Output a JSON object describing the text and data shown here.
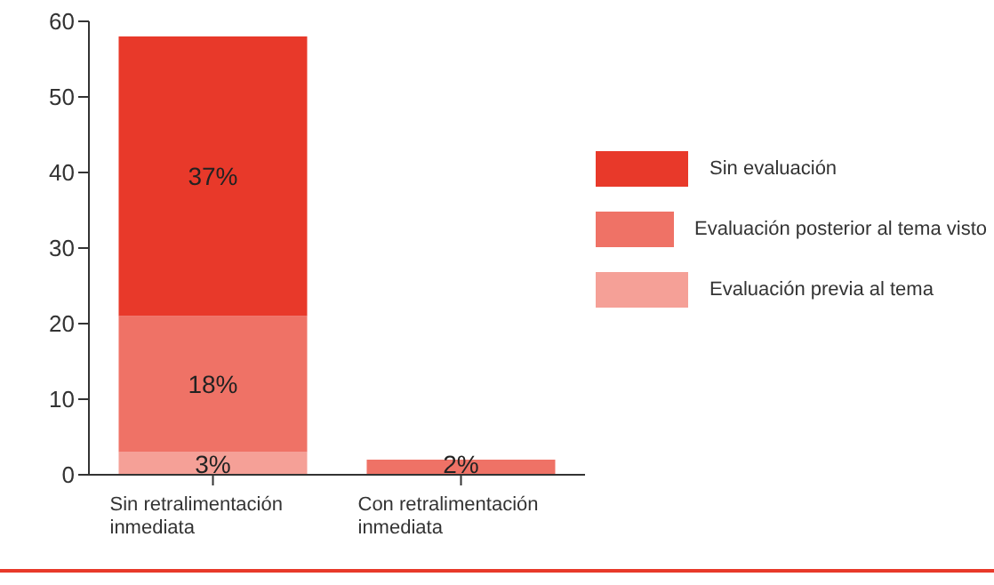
{
  "chart_data": {
    "type": "bar",
    "stacked": true,
    "categories": [
      "Sin retralimentación inmediata",
      "Con retralimentación inmediata"
    ],
    "series": [
      {
        "name": "Evaluación previa al tema",
        "color": "#f5a097",
        "values": [
          3,
          null
        ],
        "value_labels": [
          "3%",
          null
        ]
      },
      {
        "name": "Evaluación posterior al tema visto",
        "color": "#ef7266",
        "values": [
          18,
          2
        ],
        "value_labels": [
          "18%",
          "2%"
        ]
      },
      {
        "name": "Sin evaluación",
        "color": "#e8392a",
        "values": [
          37,
          null
        ],
        "value_labels": [
          "37%",
          null
        ]
      }
    ],
    "ylim": [
      0,
      60
    ],
    "yticks": [
      0,
      10,
      20,
      30,
      40,
      50,
      60
    ],
    "legend": "right"
  }
}
